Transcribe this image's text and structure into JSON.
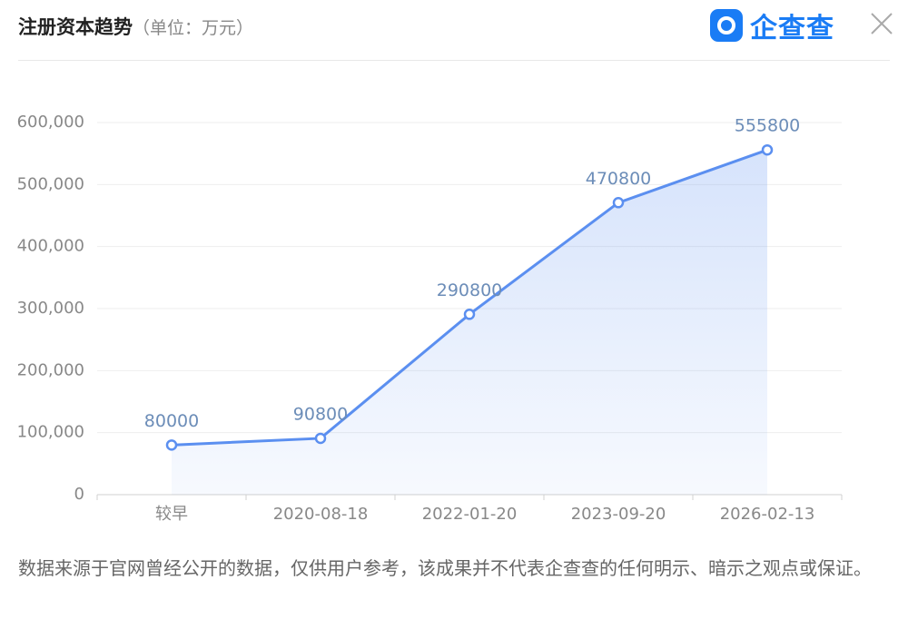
{
  "header": {
    "title": "注册资本趋势",
    "unit": "（单位：万元）",
    "brand": "企查查"
  },
  "footer": {
    "disclaimer": "数据来源于官网曾经公开的数据，仅供用户参考，该成果并不代表企查查的任何明示、暗示之观点或保证。"
  },
  "chart_data": {
    "type": "line",
    "categories": [
      "较早",
      "2020-08-18",
      "2022-01-20",
      "2023-09-20",
      "2026-02-13"
    ],
    "values": [
      80000,
      90800,
      290800,
      470800,
      555800
    ],
    "color": "#5b8ff0",
    "ylim": [
      0,
      600000
    ],
    "yticks": [
      0,
      {
        "value": 100000,
        "label": "100,000"
      },
      {
        "value": 200000,
        "label": "200,000"
      },
      {
        "value": 300000,
        "label": "300,000"
      },
      {
        "value": 400000,
        "label": "400,000"
      },
      {
        "value": 500000,
        "label": "500,000"
      },
      {
        "value": 600000,
        "label": "600,000"
      }
    ],
    "grid": true
  }
}
